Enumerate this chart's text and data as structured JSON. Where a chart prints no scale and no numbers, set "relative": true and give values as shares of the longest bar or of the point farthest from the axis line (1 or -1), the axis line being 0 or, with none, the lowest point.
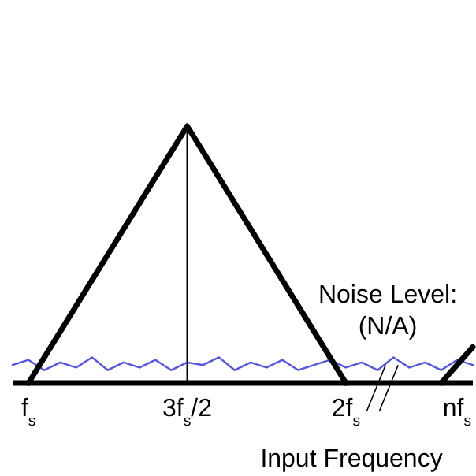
{
  "chart_data": {
    "type": "line",
    "relative": true,
    "xlabel": "Input Frequency",
    "categories": [
      null,
      "f$_{s}$",
      null,
      null,
      null,
      null,
      null,
      null,
      null,
      null,
      null,
      "3f$_{s}$/2",
      null,
      null,
      null,
      null,
      null,
      null,
      null,
      null,
      null,
      "2f$_{s}$",
      null,
      null,
      null,
      null,
      null,
      null,
      "nf$_{s}$",
      null
    ],
    "series": [
      {
        "color": "#000000",
        "values": [
          null,
          0,
          0.1,
          0.2,
          0.3,
          0.4,
          0.5,
          0.6,
          0.7,
          0.8,
          0.9,
          1,
          0.9,
          0.8,
          0.7,
          0.6,
          0.5,
          0.4,
          0.3,
          0.2,
          0.1,
          0,
          null,
          null,
          null,
          null,
          null,
          null,
          null,
          null
        ]
      },
      {
        "color": "#000000",
        "values": [
          null,
          null,
          null,
          null,
          null,
          null,
          null,
          null,
          null,
          null,
          null,
          null,
          null,
          null,
          null,
          null,
          null,
          null,
          null,
          null,
          null,
          null,
          null,
          null,
          null,
          null,
          null,
          0,
          0.07,
          0.14
        ]
      },
      {
        "color": "#2b2bd8",
        "values": [
          0.07,
          0.09,
          0.05,
          0.08,
          0.06,
          0.1,
          0.05,
          0.08,
          0.06,
          0.09,
          0.05,
          0.08,
          0.07,
          0.1,
          0.05,
          0.08,
          0.06,
          0.09,
          0.05,
          0.07,
          0.09,
          0.06,
          0.08,
          0.05,
          0.1,
          0.06,
          0.08,
          0.05,
          0.09,
          0.07
        ]
      }
    ],
    "ref_lines": [
      {
        "axis": "x",
        "value": "3f$_{s}$/2",
        "color": "#000000"
      }
    ],
    "annotations": [
      "Noise Level:\n(N/A)"
    ]
  }
}
